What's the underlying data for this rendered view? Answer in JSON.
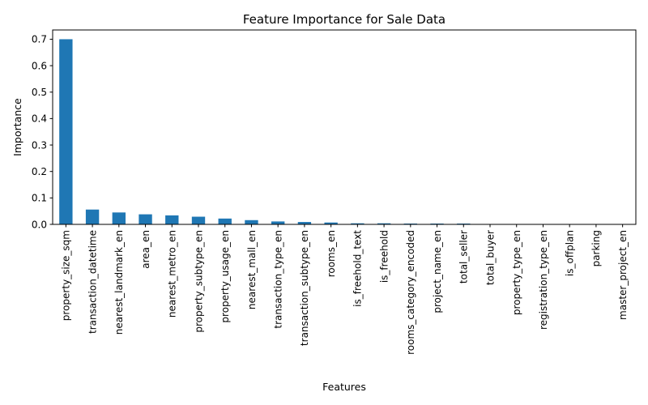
{
  "chart_data": {
    "type": "bar",
    "title": "Feature Importance for Sale Data",
    "xlabel": "Features",
    "ylabel": "Importance",
    "ylim": [
      0,
      0.735
    ],
    "yticks": [
      0.0,
      0.1,
      0.2,
      0.3,
      0.4,
      0.5,
      0.6,
      0.7
    ],
    "ytick_labels": [
      "0.0",
      "0.1",
      "0.2",
      "0.3",
      "0.4",
      "0.5",
      "0.6",
      "0.7"
    ],
    "bar_color": "#1f77b4",
    "grid": false,
    "categories": [
      "property_size_sqm",
      "transaction_datetime",
      "nearest_landmark_en",
      "area_en",
      "nearest_metro_en",
      "property_subtype_en",
      "property_usage_en",
      "nearest_mall_en",
      "transaction_type_en",
      "transaction_subtype_en",
      "rooms_en",
      "is_freehold_text",
      "is_freehold",
      "rooms_category_encoded",
      "project_name_en",
      "total_seller",
      "total_buyer",
      "property_type_en",
      "registration_type_en",
      "is_offplan",
      "parking",
      "master_project_en"
    ],
    "values": [
      0.7,
      0.056,
      0.045,
      0.038,
      0.034,
      0.029,
      0.022,
      0.016,
      0.011,
      0.009,
      0.007,
      0.004,
      0.004,
      0.003,
      0.003,
      0.003,
      0.0015,
      0.001,
      0.001,
      0.0008,
      0.0005,
      0.0003
    ]
  }
}
